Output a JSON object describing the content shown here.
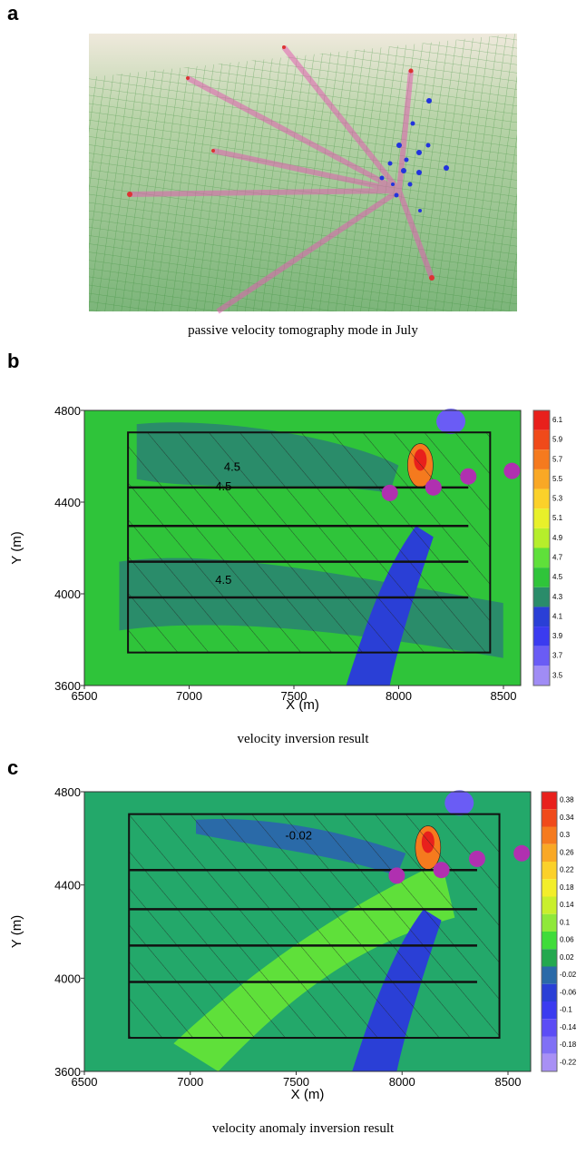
{
  "panels": [
    {
      "label": "a",
      "caption": "passive velocity tomography mode in July"
    },
    {
      "label": "b",
      "caption": "velocity inversion result",
      "xlabel": "X (m)",
      "ylabel": "Y (m)",
      "xticks": [
        6500,
        7000,
        7500,
        8000,
        8500
      ],
      "yticks": [
        3600,
        4000,
        4400,
        4800
      ],
      "colorbar": [
        6.1,
        5.9,
        5.7,
        5.5,
        5.3,
        5.1,
        4.9,
        4.7,
        4.5,
        4.3,
        4.1,
        3.9,
        3.7,
        3.5
      ],
      "contour_labels": [
        "4.5",
        "4.5",
        "4.5"
      ]
    },
    {
      "label": "c",
      "caption": "velocity anomaly inversion result",
      "xlabel": "X (m)",
      "ylabel": "Y (m)",
      "xticks": [
        6500,
        7000,
        7500,
        8000,
        8500
      ],
      "yticks": [
        3600,
        4000,
        4400,
        4800
      ],
      "colorbar": [
        0.38,
        0.34,
        0.3,
        0.26,
        0.22,
        0.18,
        0.14,
        0.1,
        0.06,
        0.02,
        -0.02,
        -0.06,
        -0.1,
        -0.14,
        -0.18,
        -0.22
      ],
      "contour_labels": [
        "-0.02"
      ]
    }
  ]
}
